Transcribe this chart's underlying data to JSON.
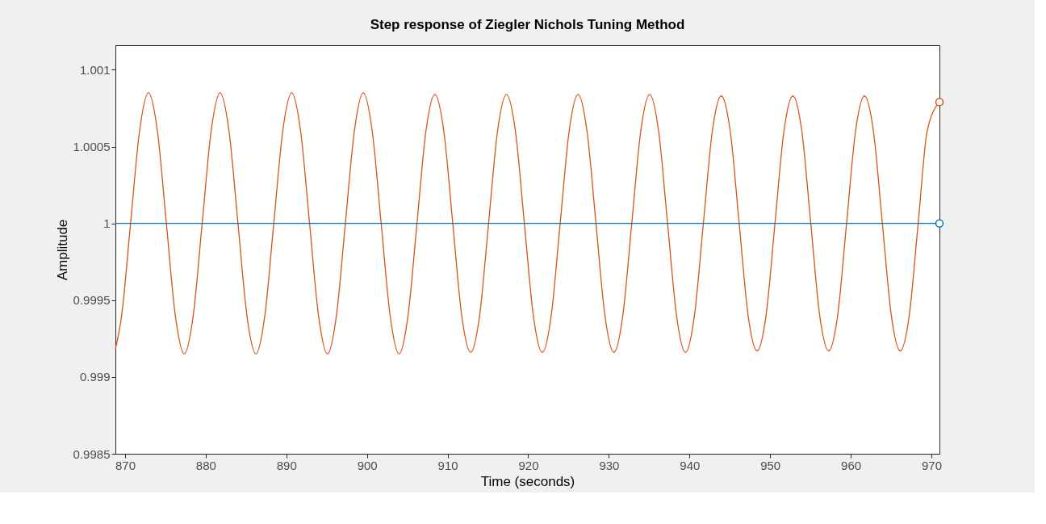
{
  "chart_data": {
    "type": "line",
    "title": "Step response of Ziegler  Nichols Tuning Method",
    "xlabel": "Time (seconds)",
    "ylabel": "Amplitude",
    "xlim": [
      868.8,
      971.0
    ],
    "ylim": [
      0.9985,
      1.00116
    ],
    "xticks": [
      870,
      880,
      890,
      900,
      910,
      920,
      930,
      940,
      950,
      960,
      970
    ],
    "yticks": [
      0.9985,
      0.999,
      0.9995,
      1,
      1.0005,
      1.001
    ],
    "grid": false,
    "line_style": "solid",
    "series": [
      {
        "color": "#d95319",
        "marker": "none",
        "x": [
          868.8,
          869.57,
          870.68,
          871.79,
          872.9,
          874.01,
          875.12,
          876.23,
          877.34,
          878.45,
          879.56,
          880.67,
          881.78,
          882.89,
          884.0,
          885.11,
          886.22,
          887.33,
          888.44,
          889.55,
          890.66,
          891.77,
          892.88,
          893.99,
          895.1,
          896.21,
          897.32,
          898.43,
          899.54,
          900.65,
          901.76,
          902.87,
          903.98,
          905.09,
          906.2,
          907.31,
          908.42,
          909.53,
          910.64,
          911.75,
          912.86,
          913.97,
          915.08,
          916.19,
          917.3,
          918.41,
          919.52,
          920.63,
          921.74,
          922.85,
          923.96,
          925.07,
          926.18,
          927.29,
          928.4,
          929.51,
          930.62,
          931.73,
          932.84,
          933.95,
          935.06,
          936.17,
          937.28,
          938.39,
          939.5,
          940.61,
          941.72,
          942.83,
          943.94,
          945.05,
          946.16,
          947.27,
          948.38,
          949.49,
          950.6,
          951.71,
          952.82,
          953.93,
          955.04,
          956.15,
          957.26,
          958.37,
          959.48,
          960.59,
          961.7,
          962.81,
          963.92,
          965.03,
          966.14,
          967.25,
          968.36,
          969.47,
          971.0
        ],
        "values": [
          0.99918,
          0.9994,
          1.0,
          1.0006,
          1.00085,
          1.0006,
          1.0,
          0.9994,
          0.99915,
          0.9994,
          1.0,
          1.0006,
          1.00085,
          1.0006,
          1.0,
          0.9994,
          0.99915,
          0.9994,
          1.0,
          1.0006,
          1.00085,
          1.0006,
          1.0,
          0.9994,
          0.99915,
          0.9994,
          1.0,
          1.0006,
          1.00085,
          1.0006,
          1.0,
          0.9994,
          0.99915,
          0.9994,
          1.0,
          1.0006,
          1.00084,
          1.0006,
          1.0,
          0.9994,
          0.99916,
          0.9994,
          1.0,
          1.0006,
          1.00084,
          1.0006,
          1.0,
          0.9994,
          0.99916,
          0.9994,
          1.0,
          1.0006,
          1.00084,
          1.0006,
          1.0,
          0.9994,
          0.99916,
          0.9994,
          1.0,
          1.0006,
          1.00084,
          1.0006,
          1.0,
          0.9994,
          0.99916,
          0.9994,
          1.0,
          1.0006,
          1.00083,
          1.0006,
          1.0,
          0.9994,
          0.99917,
          0.9994,
          1.0,
          1.0006,
          1.00083,
          1.0006,
          1.0,
          0.9994,
          0.99917,
          0.9994,
          1.0,
          1.0006,
          1.00083,
          1.0006,
          1.0,
          0.9994,
          0.99917,
          0.9994,
          1.0,
          1.0006,
          1.00079
        ]
      },
      {
        "color": "#0072bd",
        "marker": "none",
        "x": [
          868.8,
          971.0
        ],
        "values": [
          1,
          1
        ]
      },
      {
        "type": "scatter",
        "color": "#d95319",
        "marker": "circle",
        "x": [
          971.0
        ],
        "values": [
          1.00079
        ]
      },
      {
        "type": "scatter",
        "color": "#0072bd",
        "marker": "circle",
        "x": [
          971.0
        ],
        "values": [
          1
        ]
      }
    ]
  }
}
